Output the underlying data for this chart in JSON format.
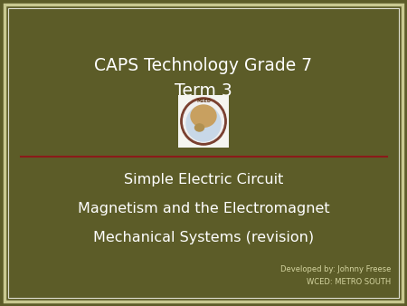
{
  "bg_color": "#5c5c28",
  "outer_border_color": "#c8c890",
  "inner_border_color": "#deded0",
  "dark_red_line_color": "#8B1A1A",
  "title_line1": "CAPS Technology Grade 7",
  "title_line2": "Term 3",
  "title_color": "#ffffff",
  "title_fontsize": 13.5,
  "body_lines": [
    "Simple Electric Circuit",
    "Magnetism and the Electromagnet",
    "Mechanical Systems (revision)"
  ],
  "body_color": "#ffffff",
  "body_fontsize": 11.5,
  "credit_line1": "Developed by: Johnny Freese",
  "credit_line2": "WCED: METRO SOUTH",
  "credit_color": "#d4d4a0",
  "credit_fontsize": 6.0,
  "logo_bg": "#f5f5f0",
  "logo_border": "#7a4030",
  "logo_ring": "#7a4030",
  "logo_globe_light": "#c8d8e8",
  "logo_head_color": "#c8a060",
  "logo_msed_color": "#5a3010"
}
